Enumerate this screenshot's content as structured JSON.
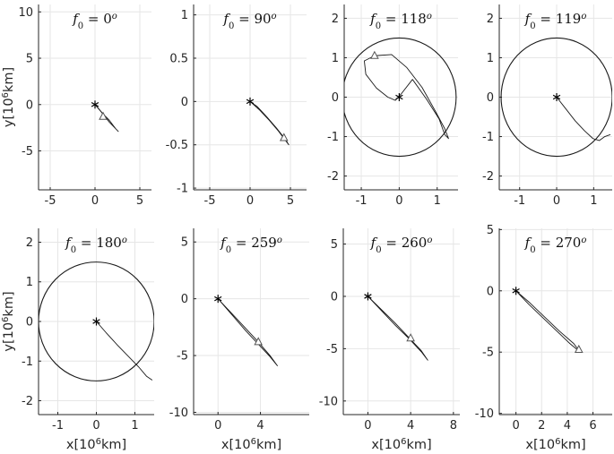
{
  "chart_data": [
    {
      "type": "line",
      "panel": 1,
      "title": "f_0 = 0^o",
      "title_parts": {
        "symbol": "f",
        "sub": "0",
        "eq": " = ",
        "value": "0",
        "sup": "o"
      },
      "ylabel": "y[10^6km]",
      "ylabel_parts": {
        "pre": "y[10",
        "sup": "6",
        "post": "km]"
      },
      "xlabel": "",
      "xlim": [
        -6.3,
        6.3
      ],
      "ylim": [
        -9.2,
        10.8
      ],
      "xticks": [
        -5,
        0,
        5
      ],
      "yticks": [
        -5,
        0,
        5,
        10
      ],
      "central_body": [
        0,
        0
      ],
      "marker": [
        0.9,
        -1.3
      ],
      "series": [
        {
          "points": [
            [
              0,
              0
            ],
            [
              0.7,
              -0.8
            ],
            [
              1.6,
              -1.9
            ],
            [
              2.4,
              -2.7
            ],
            [
              2.6,
              -2.9
            ],
            [
              2.3,
              -2.6
            ],
            [
              1.6,
              -1.7
            ],
            [
              0.8,
              -0.9
            ],
            [
              0.2,
              -0.2
            ],
            [
              0,
              0
            ]
          ]
        }
      ]
    },
    {
      "type": "line",
      "panel": 2,
      "title": "f_0 = 90^o",
      "title_parts": {
        "symbol": "f",
        "sub": "0",
        "eq": " = ",
        "value": "90",
        "sup": "o"
      },
      "xlabel": "",
      "ylabel": "",
      "xlim": [
        -7.0,
        7.0
      ],
      "ylim": [
        -1.02,
        1.12
      ],
      "xticks": [
        -5,
        0,
        5
      ],
      "yticks": [
        -1,
        -0.5,
        0,
        0.5,
        1
      ],
      "central_body": [
        0,
        0
      ],
      "marker": [
        4.2,
        -0.42
      ],
      "series": [
        {
          "points": [
            [
              0,
              0
            ],
            [
              1.2,
              -0.1
            ],
            [
              2.4,
              -0.22
            ],
            [
              3.5,
              -0.34
            ],
            [
              4.3,
              -0.44
            ],
            [
              4.8,
              -0.5
            ],
            [
              4.4,
              -0.44
            ],
            [
              3.3,
              -0.31
            ],
            [
              2.1,
              -0.18
            ],
            [
              0.9,
              -0.06
            ],
            [
              0,
              0
            ]
          ]
        }
      ]
    },
    {
      "type": "line",
      "panel": 3,
      "title": "f_0 = 118^o",
      "title_parts": {
        "symbol": "f",
        "sub": "0",
        "eq": " = ",
        "value": "118",
        "sup": "o"
      },
      "xlabel": "",
      "ylabel": "",
      "xlim": [
        -1.45,
        1.55
      ],
      "ylim": [
        -2.35,
        2.35
      ],
      "xticks": [
        -1,
        0,
        1
      ],
      "yticks": [
        -2,
        -1,
        0,
        1,
        2
      ],
      "central_body": [
        0,
        0
      ],
      "marker": [
        -0.65,
        1.05
      ],
      "series": [
        {
          "name": "",
          "points": [
            [
              -0.65,
              1.05
            ],
            [
              -0.92,
              0.92
            ],
            [
              -0.88,
              0.58
            ],
            [
              -0.6,
              0.23
            ],
            [
              -0.3,
              0.0
            ],
            [
              -0.1,
              -0.08
            ],
            [
              0.05,
              0.08
            ],
            [
              0.35,
              0.45
            ],
            [
              0.72,
              -0.05
            ],
            [
              1.05,
              -0.55
            ],
            [
              1.2,
              -0.95
            ],
            [
              1.3,
              -1.05
            ],
            [
              1.2,
              -0.8
            ],
            [
              0.95,
              -0.35
            ],
            [
              0.6,
              0.25
            ],
            [
              0.2,
              0.75
            ],
            [
              -0.2,
              1.08
            ],
            [
              -0.65,
              1.05
            ]
          ]
        },
        {
          "name": "",
          "circle": {
            "cx": 0,
            "cy": 0,
            "r": 1.5
          }
        }
      ]
    },
    {
      "type": "line",
      "panel": 4,
      "title": "f_0 = 119^o",
      "title_parts": {
        "symbol": "f",
        "sub": "0",
        "eq": " = ",
        "value": "119",
        "sup": "o"
      },
      "xlabel": "",
      "ylabel": "",
      "xlim": [
        -1.55,
        1.5
      ],
      "ylim": [
        -2.35,
        2.35
      ],
      "xticks": [
        -1,
        0,
        1
      ],
      "yticks": [
        -2,
        -1,
        0,
        1,
        2
      ],
      "central_body": [
        0,
        0
      ],
      "series": [
        {
          "points": [
            [
              0,
              0
            ],
            [
              0.25,
              -0.3
            ],
            [
              0.5,
              -0.6
            ],
            [
              0.75,
              -0.85
            ],
            [
              0.98,
              -1.05
            ],
            [
              1.15,
              -1.1
            ],
            [
              1.3,
              -1.0
            ],
            [
              1.45,
              -0.95
            ]
          ]
        },
        {
          "circle": {
            "cx": 0,
            "cy": 0,
            "r": 1.5
          }
        }
      ]
    },
    {
      "type": "line",
      "panel": 5,
      "title": "f_0 = 180^o",
      "title_parts": {
        "symbol": "f",
        "sub": "0",
        "eq": " = ",
        "value": "180",
        "sup": "o"
      },
      "ylabel": "y[10^6km]",
      "ylabel_parts": {
        "pre": "y[10",
        "sup": "6",
        "post": "km]"
      },
      "xlabel": "x[10^6km]",
      "xlabel_parts": {
        "pre": "x[10",
        "sup": "6",
        "post": "km]"
      },
      "xlim": [
        -1.5,
        1.5
      ],
      "ylim": [
        -2.35,
        2.35
      ],
      "xticks": [
        -1,
        0,
        1
      ],
      "yticks": [
        -2,
        -1,
        0,
        1,
        2
      ],
      "central_body": [
        0,
        0
      ],
      "series": [
        {
          "points": [
            [
              0,
              0
            ],
            [
              0.25,
              -0.28
            ],
            [
              0.55,
              -0.6
            ],
            [
              0.85,
              -0.9
            ],
            [
              1.1,
              -1.15
            ],
            [
              1.3,
              -1.38
            ],
            [
              1.45,
              -1.48
            ]
          ]
        },
        {
          "circle": {
            "cx": 0,
            "cy": 0,
            "r": 1.5
          }
        }
      ]
    },
    {
      "type": "line",
      "panel": 6,
      "title": "f_0 = 259^o",
      "title_parts": {
        "symbol": "f",
        "sub": "0",
        "eq": " = ",
        "value": "259",
        "sup": "o"
      },
      "xlabel": "x[10^6km]",
      "xlabel_parts": {
        "pre": "x[10",
        "sup": "6",
        "post": "km]"
      },
      "ylabel": "",
      "xlim": [
        -2.3,
        8.6
      ],
      "ylim": [
        -10.2,
        6.2
      ],
      "xticks": [
        0,
        4
      ],
      "yticks": [
        -10,
        -5,
        0,
        5
      ],
      "central_body": [
        0,
        0
      ],
      "marker": [
        3.8,
        -3.8
      ],
      "series": [
        {
          "points": [
            [
              0,
              0
            ],
            [
              1.3,
              -1.4
            ],
            [
              2.6,
              -2.8
            ],
            [
              3.8,
              -4.0
            ],
            [
              4.9,
              -5.1
            ],
            [
              5.6,
              -5.9
            ],
            [
              4.9,
              -5.0
            ],
            [
              3.7,
              -3.7
            ],
            [
              2.4,
              -2.4
            ],
            [
              1.1,
              -1.1
            ],
            [
              0,
              0
            ]
          ]
        }
      ]
    },
    {
      "type": "line",
      "panel": 7,
      "title": "f_0 = 260^o",
      "title_parts": {
        "symbol": "f",
        "sub": "0",
        "eq": " = ",
        "value": "260",
        "sup": "o"
      },
      "xlabel": "x[10^6km]",
      "xlabel_parts": {
        "pre": "x[10",
        "sup": "6",
        "post": "km]"
      },
      "ylabel": "",
      "xlim": [
        -2.3,
        8.6
      ],
      "ylim": [
        -11.3,
        6.5
      ],
      "xticks": [
        0,
        4,
        8
      ],
      "yticks": [
        -10,
        -5,
        0,
        5
      ],
      "central_body": [
        0,
        0
      ],
      "marker": [
        4.0,
        -4.0
      ],
      "series": [
        {
          "points": [
            [
              0,
              0
            ],
            [
              1.3,
              -1.4
            ],
            [
              2.6,
              -2.8
            ],
            [
              3.9,
              -4.1
            ],
            [
              5.0,
              -5.3
            ],
            [
              5.6,
              -6.1
            ],
            [
              5.0,
              -5.2
            ],
            [
              3.8,
              -3.9
            ],
            [
              2.5,
              -2.5
            ],
            [
              1.1,
              -1.1
            ],
            [
              0,
              0
            ]
          ]
        }
      ]
    },
    {
      "type": "line",
      "panel": 8,
      "title": "f_0 = 270^o",
      "title_parts": {
        "symbol": "f",
        "sub": "0",
        "eq": " = ",
        "value": "270",
        "sup": "o"
      },
      "xlabel": "x[10^6km]",
      "xlabel_parts": {
        "pre": "x[10",
        "sup": "6",
        "post": "km]"
      },
      "ylabel": "",
      "xlim": [
        -1.3,
        7.5
      ],
      "ylim": [
        -10.1,
        5.1
      ],
      "xticks": [
        0,
        2,
        4,
        6
      ],
      "yticks": [
        -10,
        -5,
        0,
        5
      ],
      "central_body": [
        0,
        0
      ],
      "marker": [
        4.9,
        -4.8
      ],
      "series": [
        {
          "points": [
            [
              0,
              0
            ],
            [
              1.0,
              -1.1
            ],
            [
              2.1,
              -2.2
            ],
            [
              3.2,
              -3.3
            ],
            [
              4.2,
              -4.3
            ],
            [
              5.0,
              -5.0
            ],
            [
              4.5,
              -4.3
            ],
            [
              3.4,
              -3.3
            ],
            [
              2.2,
              -2.1
            ],
            [
              1.0,
              -0.9
            ],
            [
              0,
              0
            ]
          ]
        }
      ]
    }
  ],
  "style": {
    "axis_color": "#262626",
    "grid_color": "#e6e6e6",
    "line_color": "#1a1a1a",
    "marker_color": "#555555"
  }
}
